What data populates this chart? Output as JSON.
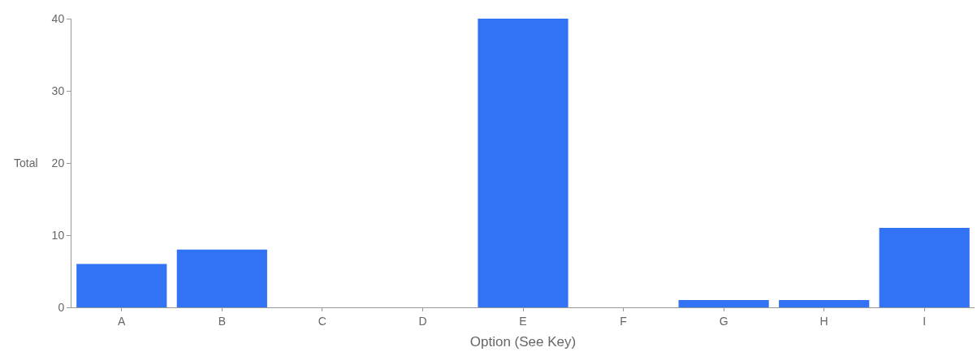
{
  "chart_data": {
    "type": "bar",
    "xlabel": "Option (See Key)",
    "ylabel": "Total",
    "categories": [
      "A",
      "B",
      "C",
      "D",
      "E",
      "F",
      "G",
      "H",
      "I"
    ],
    "values": [
      6,
      8,
      0,
      0,
      40,
      0,
      1,
      1,
      11
    ],
    "color": "#3273f6",
    "ylim": [
      0,
      40
    ],
    "yticks": [
      0,
      10,
      20,
      30,
      40
    ]
  }
}
